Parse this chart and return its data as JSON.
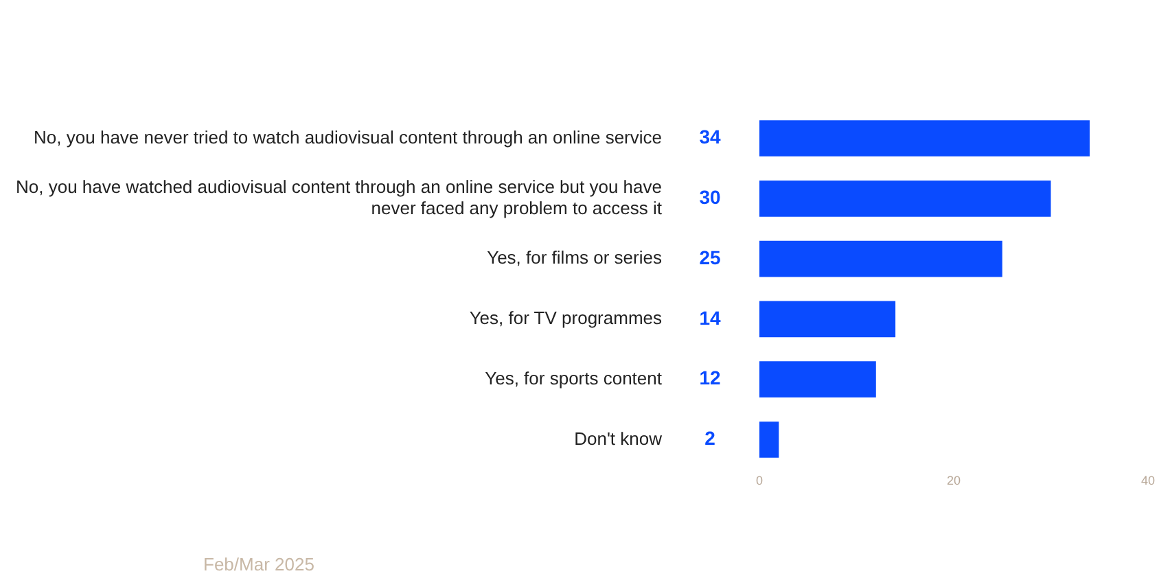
{
  "chart_data": {
    "type": "bar",
    "orientation": "horizontal",
    "categories": [
      "No, you have never tried to watch audiovisual content through an online service",
      "No, you have watched audiovisual content through an online service but you have never faced any problem to access it",
      "Yes, for films or series",
      "Yes, for TV programmes",
      "Yes, for sports content",
      "Don't know"
    ],
    "values": [
      34,
      30,
      25,
      14,
      12,
      2
    ],
    "color": "#0a4bff",
    "xlim": [
      0,
      40
    ],
    "xticks": [
      0,
      20,
      40
    ],
    "grid": false,
    "legend": false,
    "data_labels": true,
    "annotations": [
      "Feb/Mar 2025"
    ]
  }
}
